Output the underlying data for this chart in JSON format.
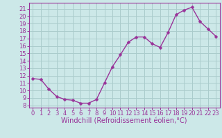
{
  "x": [
    0,
    1,
    2,
    3,
    4,
    5,
    6,
    7,
    8,
    9,
    10,
    11,
    12,
    13,
    14,
    15,
    16,
    17,
    18,
    19,
    20,
    21,
    22,
    23
  ],
  "y": [
    11.6,
    11.5,
    10.2,
    9.2,
    8.8,
    8.7,
    8.3,
    8.3,
    8.8,
    11.0,
    13.2,
    14.8,
    16.5,
    17.2,
    17.2,
    16.3,
    15.8,
    17.8,
    20.2,
    20.8,
    21.2,
    19.3,
    18.3,
    17.3
  ],
  "line_color": "#993399",
  "marker": "D",
  "marker_size": 2.5,
  "bg_color": "#cce8e8",
  "grid_color": "#aacccc",
  "xlabel": "Windchill (Refroidissement éolien,°C)",
  "xlabel_color": "#993399",
  "ylabel_ticks": [
    8,
    9,
    10,
    11,
    12,
    13,
    14,
    15,
    16,
    17,
    18,
    19,
    20,
    21
  ],
  "ylim": [
    7.7,
    21.8
  ],
  "xlim": [
    -0.5,
    23.5
  ],
  "tick_label_color": "#993399",
  "axis_color": "#993399",
  "xlabel_fontsize": 7.0,
  "tick_fontsize": 6.0,
  "spine_color": "#993399"
}
